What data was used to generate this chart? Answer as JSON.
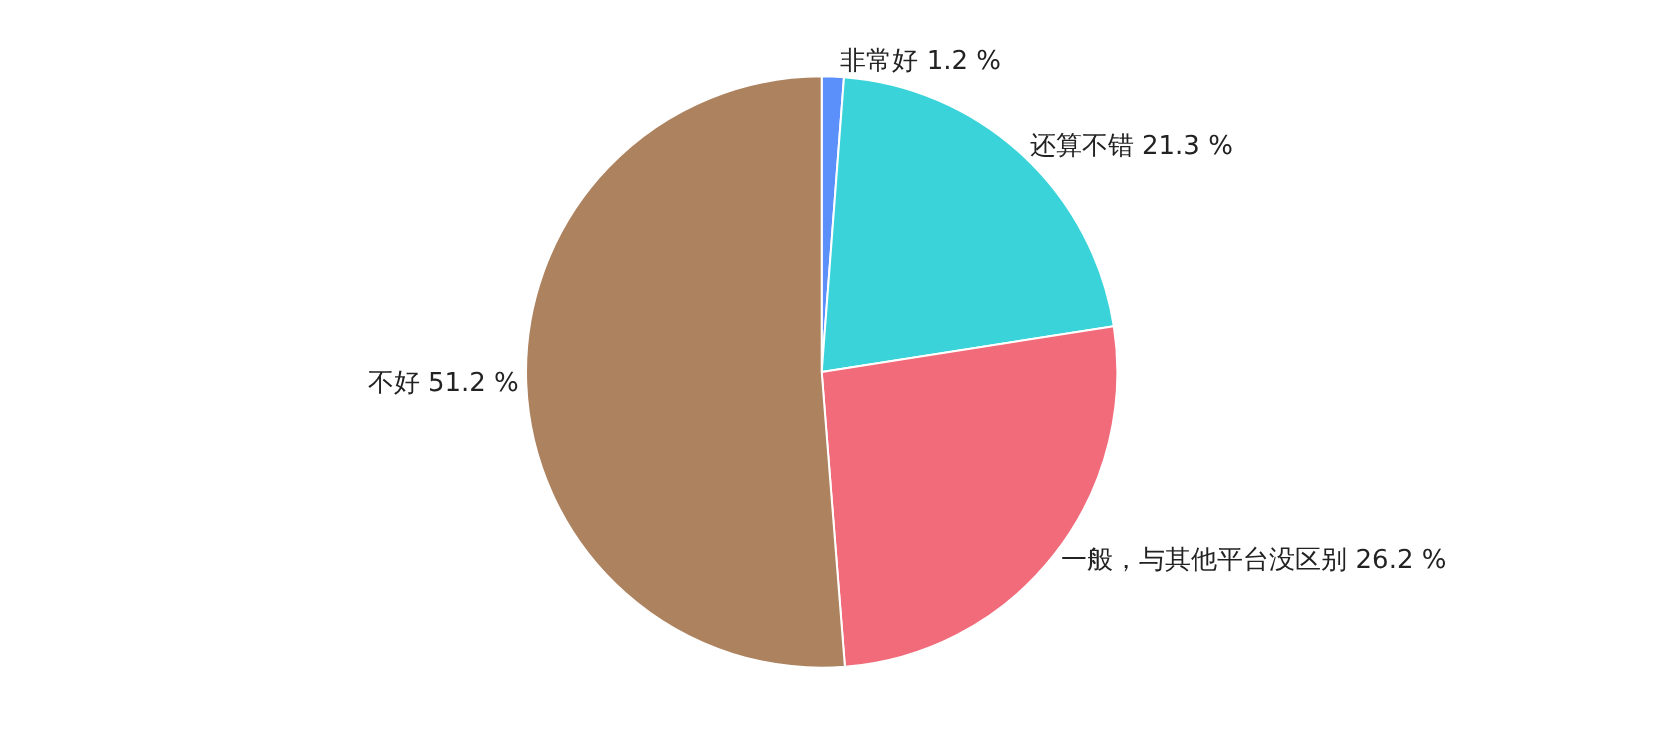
{
  "chart_data": {
    "type": "pie",
    "categories": [
      "非常好",
      "还算不错",
      "一般，与其他平台没区别",
      "不好"
    ],
    "values": [
      1.2,
      21.3,
      26.2,
      51.2
    ],
    "value_labels": [
      "1.2 %",
      "21.3 %",
      "26.2 %",
      "51.2 %"
    ],
    "colors": [
      "#5b8ff9",
      "#3ad3da",
      "#f16b7b",
      "#ad825f"
    ],
    "legend": false
  }
}
